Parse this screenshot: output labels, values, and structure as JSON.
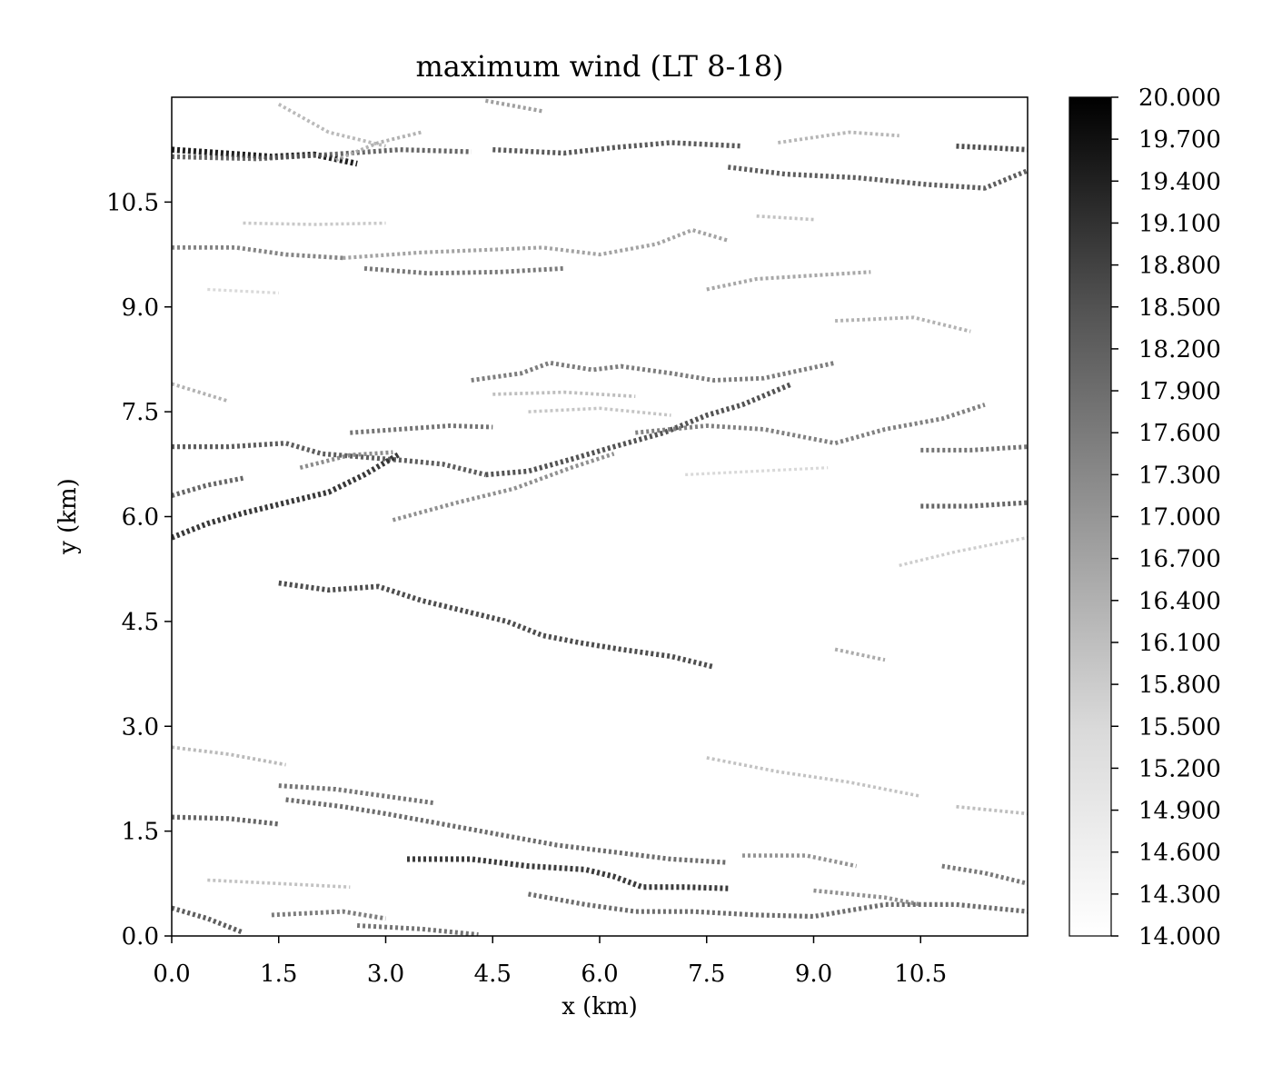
{
  "chart_data": {
    "type": "heatmap",
    "title": "maximum wind (LT 8-18)",
    "xlabel": "x (km)",
    "ylabel": "y (km)",
    "xlim": [
      0.0,
      12.0
    ],
    "ylim": [
      0.0,
      12.0
    ],
    "x_ticks": [
      "0.0",
      "1.5",
      "3.0",
      "4.5",
      "6.0",
      "7.5",
      "9.0",
      "10.5"
    ],
    "y_ticks": [
      "0.0",
      "1.5",
      "3.0",
      "4.5",
      "6.0",
      "7.5",
      "9.0",
      "10.5"
    ],
    "x_tick_values": [
      0.0,
      1.5,
      3.0,
      4.5,
      6.0,
      7.5,
      9.0,
      10.5
    ],
    "y_tick_values": [
      0.0,
      1.5,
      3.0,
      4.5,
      6.0,
      7.5,
      9.0,
      10.5
    ],
    "colorbar": {
      "min": 14.0,
      "max": 20.0,
      "colormap": "greys",
      "ticks": [
        "20.000",
        "19.700",
        "19.400",
        "19.100",
        "18.800",
        "18.500",
        "18.200",
        "17.900",
        "17.600",
        "17.300",
        "17.000",
        "16.700",
        "16.400",
        "16.100",
        "15.800",
        "15.500",
        "15.200",
        "14.900",
        "14.600",
        "14.300",
        "14.000"
      ],
      "tick_values": [
        20.0,
        19.7,
        19.4,
        19.1,
        18.8,
        18.5,
        18.2,
        17.9,
        17.6,
        17.3,
        17.0,
        16.7,
        16.4,
        16.1,
        15.8,
        15.5,
        15.2,
        14.9,
        14.6,
        14.3,
        14.0
      ]
    },
    "grid": false,
    "streaks": [
      {
        "points": [
          [
            0.0,
            11.25
          ],
          [
            0.7,
            11.2
          ],
          [
            1.4,
            11.15
          ],
          [
            2.0,
            11.18
          ],
          [
            2.6,
            11.05
          ]
        ],
        "value": 19.8
      },
      {
        "points": [
          [
            0.0,
            11.15
          ],
          [
            1.2,
            11.12
          ],
          [
            2.2,
            11.18
          ],
          [
            3.2,
            11.25
          ],
          [
            4.2,
            11.22
          ]
        ],
        "value": 18.0
      },
      {
        "points": [
          [
            4.5,
            11.25
          ],
          [
            5.5,
            11.2
          ],
          [
            6.2,
            11.28
          ],
          [
            7.0,
            11.35
          ],
          [
            8.0,
            11.3
          ]
        ],
        "value": 18.3
      },
      {
        "points": [
          [
            7.8,
            11.0
          ],
          [
            8.6,
            10.9
          ],
          [
            9.6,
            10.85
          ],
          [
            10.6,
            10.75
          ],
          [
            11.4,
            10.7
          ],
          [
            12.0,
            10.95
          ]
        ],
        "value": 18.2
      },
      {
        "points": [
          [
            11.0,
            11.3
          ],
          [
            12.0,
            11.25
          ]
        ],
        "value": 18.6
      },
      {
        "points": [
          [
            1.5,
            11.9
          ],
          [
            2.2,
            11.5
          ],
          [
            3.0,
            11.3
          ]
        ],
        "value": 15.8
      },
      {
        "points": [
          [
            2.3,
            11.1
          ],
          [
            2.9,
            11.35
          ],
          [
            3.5,
            11.5
          ]
        ],
        "value": 16.0
      },
      {
        "points": [
          [
            4.4,
            11.95
          ],
          [
            5.2,
            11.8
          ]
        ],
        "value": 16.5
      },
      {
        "points": [
          [
            8.5,
            11.35
          ],
          [
            9.5,
            11.5
          ],
          [
            10.2,
            11.45
          ]
        ],
        "value": 15.9
      },
      {
        "points": [
          [
            0.0,
            9.85
          ],
          [
            0.9,
            9.85
          ],
          [
            1.6,
            9.75
          ],
          [
            2.4,
            9.7
          ]
        ],
        "value": 17.2
      },
      {
        "points": [
          [
            2.4,
            9.7
          ],
          [
            3.5,
            9.78
          ],
          [
            4.5,
            9.82
          ],
          [
            5.2,
            9.85
          ],
          [
            6.0,
            9.75
          ],
          [
            6.8,
            9.9
          ],
          [
            7.3,
            10.1
          ],
          [
            7.8,
            9.95
          ]
        ],
        "value": 16.4
      },
      {
        "points": [
          [
            2.7,
            9.55
          ],
          [
            3.6,
            9.48
          ],
          [
            4.6,
            9.5
          ],
          [
            5.5,
            9.55
          ]
        ],
        "value": 17.5
      },
      {
        "points": [
          [
            7.5,
            9.25
          ],
          [
            8.2,
            9.4
          ],
          [
            9.0,
            9.45
          ],
          [
            9.8,
            9.5
          ]
        ],
        "value": 16.3
      },
      {
        "points": [
          [
            1.0,
            10.2
          ],
          [
            2.0,
            10.18
          ],
          [
            3.0,
            10.2
          ]
        ],
        "value": 15.4
      },
      {
        "points": [
          [
            8.2,
            10.3
          ],
          [
            9.0,
            10.25
          ]
        ],
        "value": 15.6
      },
      {
        "points": [
          [
            9.3,
            8.8
          ],
          [
            10.4,
            8.85
          ],
          [
            11.2,
            8.65
          ]
        ],
        "value": 16.0
      },
      {
        "points": [
          [
            4.2,
            7.95
          ],
          [
            4.9,
            8.05
          ],
          [
            5.3,
            8.2
          ],
          [
            5.9,
            8.1
          ],
          [
            6.3,
            8.15
          ],
          [
            7.0,
            8.05
          ],
          [
            7.6,
            7.95
          ],
          [
            8.3,
            7.98
          ],
          [
            9.3,
            8.2
          ]
        ],
        "value": 17.4
      },
      {
        "points": [
          [
            4.5,
            7.75
          ],
          [
            5.5,
            7.78
          ],
          [
            6.5,
            7.72
          ]
        ],
        "value": 15.7
      },
      {
        "points": [
          [
            0.0,
            7.0
          ],
          [
            0.8,
            7.0
          ],
          [
            1.6,
            7.05
          ],
          [
            2.1,
            6.9
          ],
          [
            2.7,
            6.85
          ],
          [
            3.3,
            6.8
          ],
          [
            3.8,
            6.75
          ],
          [
            4.4,
            6.6
          ]
        ],
        "value": 18.2
      },
      {
        "points": [
          [
            1.8,
            6.7
          ],
          [
            2.5,
            6.88
          ],
          [
            3.1,
            6.92
          ]
        ],
        "value": 17.0
      },
      {
        "points": [
          [
            2.5,
            7.2
          ],
          [
            3.2,
            7.25
          ],
          [
            3.9,
            7.3
          ],
          [
            4.5,
            7.28
          ]
        ],
        "value": 17.6
      },
      {
        "points": [
          [
            4.4,
            6.6
          ],
          [
            5.0,
            6.65
          ],
          [
            5.6,
            6.82
          ],
          [
            6.2,
            7.0
          ],
          [
            6.9,
            7.2
          ],
          [
            7.5,
            7.45
          ],
          [
            8.0,
            7.6
          ],
          [
            8.7,
            7.9
          ]
        ],
        "value": 18.5
      },
      {
        "points": [
          [
            3.1,
            5.95
          ],
          [
            4.0,
            6.2
          ],
          [
            4.8,
            6.4
          ],
          [
            5.6,
            6.7
          ],
          [
            6.2,
            6.9
          ]
        ],
        "value": 16.9
      },
      {
        "points": [
          [
            6.5,
            7.2
          ],
          [
            7.5,
            7.3
          ],
          [
            8.3,
            7.25
          ],
          [
            9.3,
            7.05
          ],
          [
            10.0,
            7.25
          ],
          [
            10.8,
            7.4
          ],
          [
            11.4,
            7.6
          ]
        ],
        "value": 17.3
      },
      {
        "points": [
          [
            0.0,
            5.7
          ],
          [
            0.5,
            5.9
          ],
          [
            1.0,
            6.05
          ],
          [
            1.6,
            6.2
          ],
          [
            2.2,
            6.35
          ],
          [
            2.7,
            6.6
          ],
          [
            3.2,
            6.9
          ]
        ],
        "value": 19.2
      },
      {
        "points": [
          [
            0.0,
            6.3
          ],
          [
            0.5,
            6.45
          ],
          [
            1.0,
            6.55
          ]
        ],
        "value": 18.0
      },
      {
        "points": [
          [
            10.5,
            6.95
          ],
          [
            11.2,
            6.95
          ],
          [
            12.0,
            7.0
          ]
        ],
        "value": 17.6
      },
      {
        "points": [
          [
            10.5,
            6.15
          ],
          [
            11.2,
            6.15
          ],
          [
            12.0,
            6.2
          ]
        ],
        "value": 18.0
      },
      {
        "points": [
          [
            1.5,
            5.05
          ],
          [
            2.2,
            4.95
          ],
          [
            2.9,
            5.0
          ],
          [
            3.5,
            4.8
          ],
          [
            4.1,
            4.65
          ],
          [
            4.7,
            4.5
          ],
          [
            5.2,
            4.3
          ],
          [
            5.7,
            4.2
          ],
          [
            6.3,
            4.1
          ],
          [
            7.0,
            4.0
          ],
          [
            7.6,
            3.85
          ]
        ],
        "value": 18.6
      },
      {
        "points": [
          [
            0.0,
            1.7
          ],
          [
            0.8,
            1.68
          ],
          [
            1.5,
            1.6
          ]
        ],
        "value": 18.0
      },
      {
        "points": [
          [
            1.5,
            2.15
          ],
          [
            2.3,
            2.1
          ],
          [
            3.0,
            2.0
          ],
          [
            3.7,
            1.9
          ]
        ],
        "value": 17.6
      },
      {
        "points": [
          [
            1.6,
            1.95
          ],
          [
            2.4,
            1.85
          ],
          [
            3.0,
            1.75
          ],
          [
            3.8,
            1.6
          ],
          [
            4.6,
            1.45
          ],
          [
            5.4,
            1.3
          ],
          [
            6.2,
            1.2
          ],
          [
            7.0,
            1.1
          ],
          [
            7.8,
            1.05
          ]
        ],
        "value": 17.8
      },
      {
        "points": [
          [
            3.3,
            1.1
          ],
          [
            4.2,
            1.1
          ],
          [
            5.0,
            1.0
          ],
          [
            5.8,
            0.95
          ],
          [
            6.2,
            0.85
          ],
          [
            6.6,
            0.7
          ],
          [
            7.2,
            0.7
          ],
          [
            7.8,
            0.68
          ]
        ],
        "value": 19.1
      },
      {
        "points": [
          [
            5.0,
            0.6
          ],
          [
            5.8,
            0.45
          ],
          [
            6.5,
            0.35
          ],
          [
            7.3,
            0.35
          ],
          [
            8.2,
            0.3
          ],
          [
            9.0,
            0.28
          ],
          [
            10.0,
            0.45
          ],
          [
            11.0,
            0.45
          ],
          [
            12.0,
            0.35
          ]
        ],
        "value": 17.8
      },
      {
        "points": [
          [
            8.0,
            1.15
          ],
          [
            8.9,
            1.15
          ],
          [
            9.6,
            1.0
          ]
        ],
        "value": 16.8
      },
      {
        "points": [
          [
            9.0,
            0.65
          ],
          [
            10.0,
            0.55
          ],
          [
            10.5,
            0.45
          ]
        ],
        "value": 16.9
      },
      {
        "points": [
          [
            10.8,
            1.0
          ],
          [
            11.4,
            0.9
          ],
          [
            12.0,
            0.75
          ]
        ],
        "value": 17.5
      },
      {
        "points": [
          [
            0.0,
            0.4
          ],
          [
            0.5,
            0.25
          ],
          [
            1.0,
            0.05
          ]
        ],
        "value": 18.2
      },
      {
        "points": [
          [
            1.4,
            0.3
          ],
          [
            2.4,
            0.35
          ],
          [
            3.0,
            0.25
          ]
        ],
        "value": 17.4
      },
      {
        "points": [
          [
            2.6,
            0.15
          ],
          [
            3.5,
            0.1
          ],
          [
            4.3,
            0.02
          ]
        ],
        "value": 17.6
      },
      {
        "points": [
          [
            0.0,
            2.7
          ],
          [
            0.8,
            2.6
          ],
          [
            1.6,
            2.45
          ]
        ],
        "value": 15.8
      },
      {
        "points": [
          [
            7.5,
            2.55
          ],
          [
            8.5,
            2.35
          ],
          [
            9.5,
            2.2
          ],
          [
            10.5,
            2.0
          ]
        ],
        "value": 15.6
      },
      {
        "points": [
          [
            11.0,
            1.85
          ],
          [
            12.0,
            1.75
          ]
        ],
        "value": 15.7
      },
      {
        "points": [
          [
            10.2,
            5.3
          ],
          [
            11.0,
            5.5
          ],
          [
            12.0,
            5.7
          ]
        ],
        "value": 15.3
      },
      {
        "points": [
          [
            9.3,
            4.1
          ],
          [
            10.0,
            3.95
          ]
        ],
        "value": 16.2
      },
      {
        "points": [
          [
            5.0,
            7.5
          ],
          [
            6.0,
            7.55
          ],
          [
            7.0,
            7.45
          ]
        ],
        "value": 15.5
      },
      {
        "points": [
          [
            0.0,
            7.9
          ],
          [
            0.8,
            7.65
          ]
        ],
        "value": 16.0
      },
      {
        "points": [
          [
            7.2,
            6.6
          ],
          [
            8.2,
            6.65
          ],
          [
            9.2,
            6.7
          ]
        ],
        "value": 15.0
      },
      {
        "points": [
          [
            0.5,
            9.25
          ],
          [
            1.5,
            9.2
          ]
        ],
        "value": 15.0
      },
      {
        "points": [
          [
            0.5,
            0.8
          ],
          [
            1.5,
            0.75
          ],
          [
            2.5,
            0.7
          ]
        ],
        "value": 15.6
      }
    ]
  }
}
